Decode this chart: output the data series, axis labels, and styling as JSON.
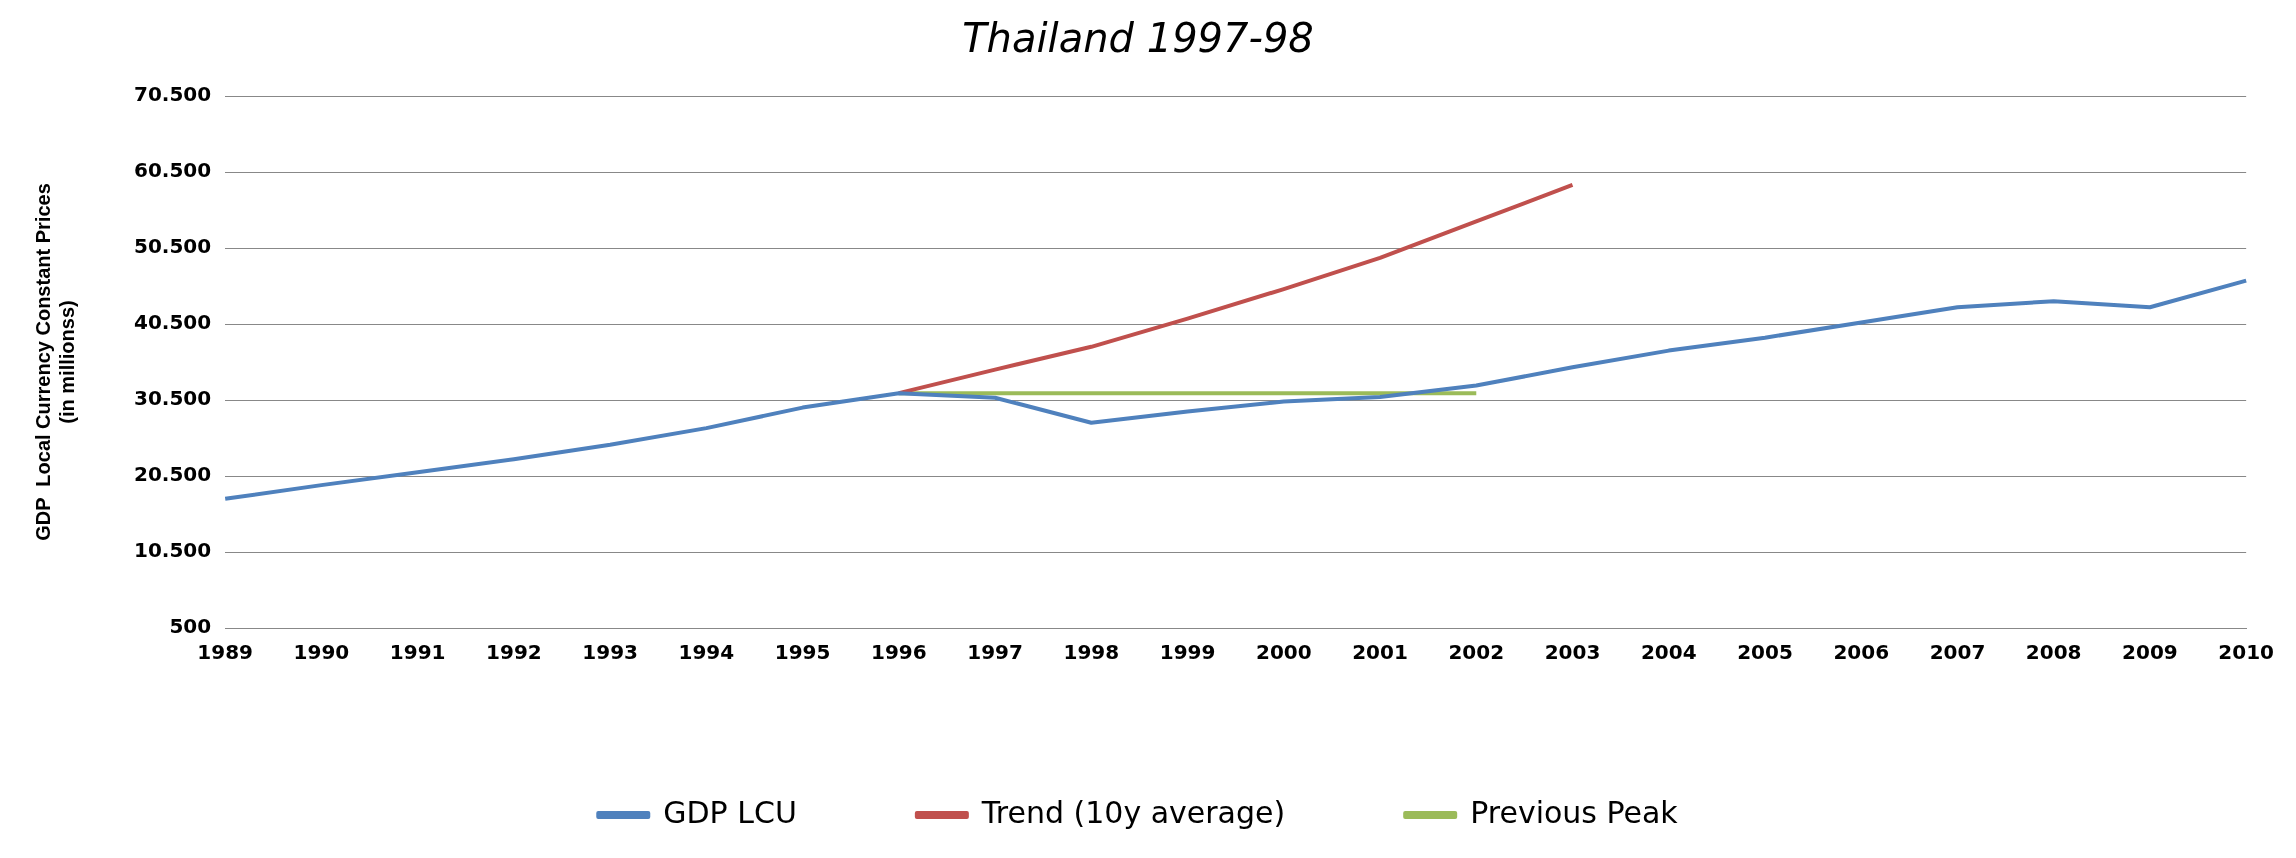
{
  "chart_data": {
    "type": "line",
    "title": "Thailand 1997-98",
    "ylabel": "GDP  Local Currency Constant Prices\n(in millionss)",
    "categories": [
      "1989",
      "1990",
      "1991",
      "1992",
      "1993",
      "1994",
      "1995",
      "1996",
      "1997",
      "1998",
      "1999",
      "2000",
      "2001",
      "2002",
      "2003",
      "2004",
      "2005",
      "2006",
      "2007",
      "2008",
      "2009",
      "2010"
    ],
    "series": [
      {
        "name": "GDP LCU",
        "color": "#4f81bd",
        "values": [
          17500,
          19300,
          21000,
          22700,
          24600,
          26800,
          29500,
          31400,
          30800,
          27500,
          29000,
          30300,
          30900,
          32400,
          34800,
          37000,
          38700,
          40700,
          42700,
          43500,
          42700,
          46200
        ]
      },
      {
        "name": "Trend (10y average)",
        "color": "#c0504d",
        "values": [
          null,
          null,
          null,
          null,
          null,
          null,
          null,
          31400,
          34500,
          37500,
          41200,
          45100,
          49200,
          54000,
          58800,
          null,
          null,
          null,
          null,
          null,
          null,
          null
        ]
      },
      {
        "name": "Previous Peak",
        "color": "#9bbb59",
        "values": [
          null,
          null,
          null,
          null,
          null,
          null,
          null,
          31400,
          31400,
          31400,
          31400,
          31400,
          31400,
          31400,
          null,
          null,
          null,
          null,
          null,
          null,
          null,
          null
        ]
      }
    ],
    "ylim": [
      500,
      70500
    ],
    "yticks": [
      {
        "value": 500,
        "label": "500"
      },
      {
        "value": 10500,
        "label": "10.500"
      },
      {
        "value": 20500,
        "label": "20.500"
      },
      {
        "value": 30500,
        "label": "30.500"
      },
      {
        "value": 40500,
        "label": "40.500"
      },
      {
        "value": 50500,
        "label": "50.500"
      },
      {
        "value": 60500,
        "label": "60.500"
      },
      {
        "value": 70500,
        "label": "70.500"
      }
    ],
    "grid": "y",
    "legend": "bottom",
    "marker": "none",
    "line_style": "solid"
  }
}
